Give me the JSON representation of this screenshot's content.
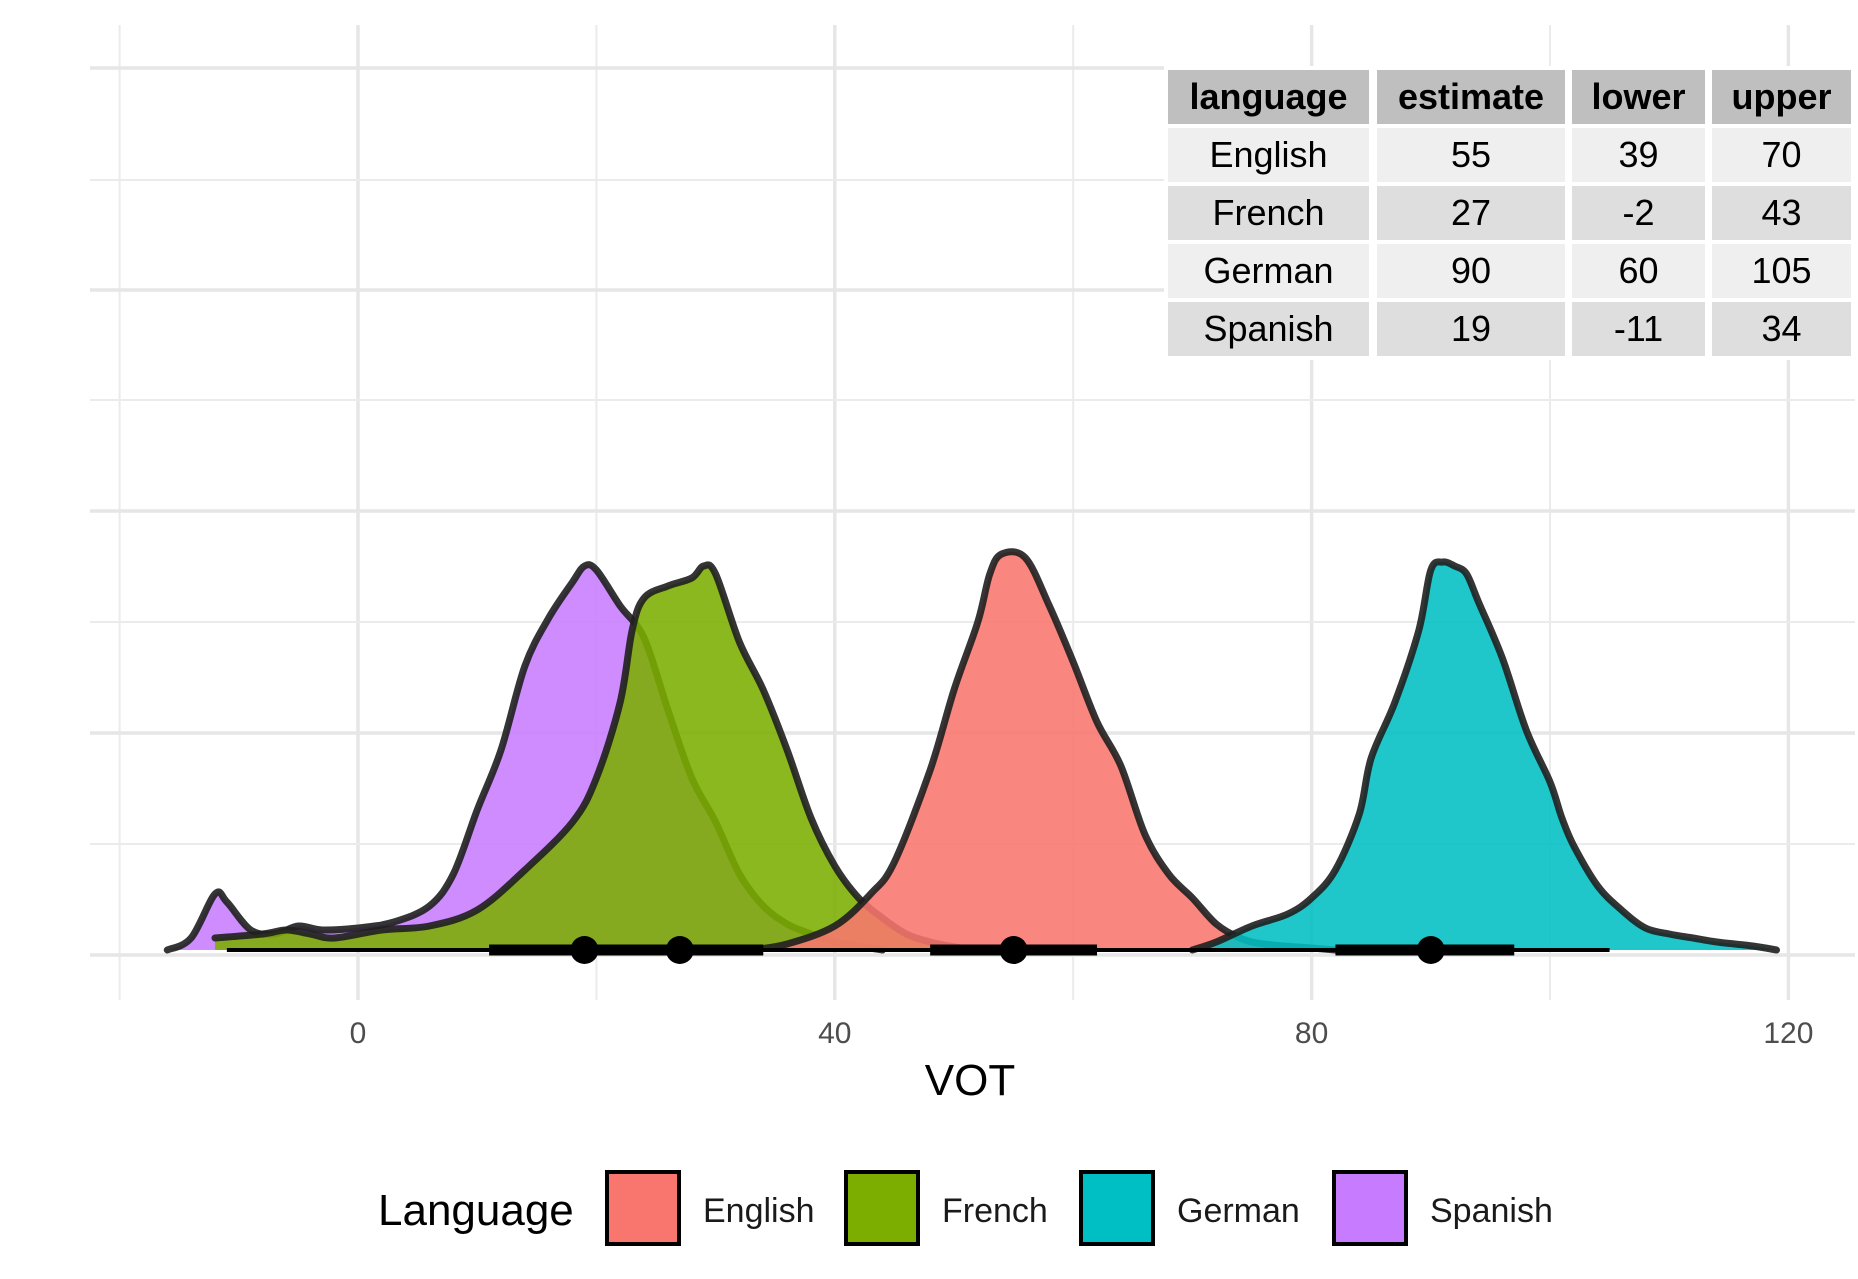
{
  "chart_data": {
    "type": "density",
    "xlabel": "VOT",
    "ylabel": "",
    "xlim": [
      -25,
      125
    ],
    "x_ticks": [
      0,
      40,
      80,
      120
    ],
    "x_tick_labels": [
      "0",
      "40",
      "80",
      "120"
    ],
    "grid": true,
    "legend": {
      "title": "Language",
      "position": "bottom",
      "entries": [
        "English",
        "French",
        "German",
        "Spanish"
      ]
    },
    "colors": {
      "English": "#F8766D",
      "French": "#7CAE00",
      "German": "#00BFC4",
      "Spanish": "#C77CFF"
    },
    "series": [
      {
        "name": "English",
        "estimate": 55,
        "ci_inner": [
          48,
          62
        ],
        "ci_outer": [
          39,
          70
        ],
        "density": [
          [
            33,
            0
          ],
          [
            36,
            0.015
          ],
          [
            40,
            0.06
          ],
          [
            43,
            0.14
          ],
          [
            45,
            0.22
          ],
          [
            48,
            0.45
          ],
          [
            50,
            0.65
          ],
          [
            52,
            0.82
          ],
          [
            53,
            0.94
          ],
          [
            54,
            0.99
          ],
          [
            56,
            0.98
          ],
          [
            58,
            0.86
          ],
          [
            60,
            0.72
          ],
          [
            62,
            0.57
          ],
          [
            64,
            0.46
          ],
          [
            66,
            0.29
          ],
          [
            68,
            0.19
          ],
          [
            70,
            0.13
          ],
          [
            72,
            0.065
          ],
          [
            74,
            0.03
          ],
          [
            76,
            0.015
          ],
          [
            80,
            0.005
          ],
          [
            82,
            0
          ]
        ]
      },
      {
        "name": "French",
        "estimate": 27,
        "ci_inner": [
          22,
          34
        ],
        "ci_outer": [
          -2,
          43
        ],
        "density": [
          [
            -12,
            0.03
          ],
          [
            -8,
            0.04
          ],
          [
            -6,
            0.05
          ],
          [
            -4,
            0.04
          ],
          [
            -2,
            0.03
          ],
          [
            2,
            0.05
          ],
          [
            6,
            0.06
          ],
          [
            10,
            0.1
          ],
          [
            14,
            0.2
          ],
          [
            18,
            0.32
          ],
          [
            20,
            0.43
          ],
          [
            22,
            0.62
          ],
          [
            23,
            0.8
          ],
          [
            24,
            0.88
          ],
          [
            26,
            0.91
          ],
          [
            28,
            0.93
          ],
          [
            29,
            0.96
          ],
          [
            30,
            0.94
          ],
          [
            32,
            0.77
          ],
          [
            34,
            0.65
          ],
          [
            36,
            0.5
          ],
          [
            38,
            0.33
          ],
          [
            40,
            0.21
          ],
          [
            42,
            0.13
          ],
          [
            44,
            0.08
          ],
          [
            46,
            0.04
          ],
          [
            48,
            0.02
          ],
          [
            50,
            0.008
          ],
          [
            52,
            0
          ]
        ]
      },
      {
        "name": "German",
        "estimate": 90,
        "ci_inner": [
          82,
          97
        ],
        "ci_outer": [
          60,
          105
        ],
        "density": [
          [
            70,
            0
          ],
          [
            72,
            0.02
          ],
          [
            75,
            0.06
          ],
          [
            78,
            0.09
          ],
          [
            80,
            0.13
          ],
          [
            82,
            0.2
          ],
          [
            84,
            0.34
          ],
          [
            85,
            0.48
          ],
          [
            87,
            0.62
          ],
          [
            89,
            0.8
          ],
          [
            90,
            0.95
          ],
          [
            91,
            0.97
          ],
          [
            92,
            0.96
          ],
          [
            93,
            0.94
          ],
          [
            94,
            0.87
          ],
          [
            96,
            0.73
          ],
          [
            98,
            0.55
          ],
          [
            100,
            0.42
          ],
          [
            101,
            0.33
          ],
          [
            102,
            0.26
          ],
          [
            104,
            0.16
          ],
          [
            106,
            0.1
          ],
          [
            108,
            0.055
          ],
          [
            110,
            0.04
          ],
          [
            112,
            0.03
          ],
          [
            114,
            0.02
          ],
          [
            117,
            0.01
          ],
          [
            119,
            0
          ]
        ]
      },
      {
        "name": "Spanish",
        "estimate": 19,
        "ci_inner": [
          11,
          27
        ],
        "ci_outer": [
          -11,
          34
        ],
        "density": [
          [
            -16,
            0
          ],
          [
            -14,
            0.03
          ],
          [
            -12,
            0.14
          ],
          [
            -11,
            0.12
          ],
          [
            -9,
            0.05
          ],
          [
            -7,
            0.04
          ],
          [
            -5,
            0.06
          ],
          [
            -3,
            0.05
          ],
          [
            0,
            0.055
          ],
          [
            3,
            0.07
          ],
          [
            6,
            0.11
          ],
          [
            8,
            0.19
          ],
          [
            10,
            0.35
          ],
          [
            12,
            0.5
          ],
          [
            14,
            0.71
          ],
          [
            16,
            0.83
          ],
          [
            18,
            0.92
          ],
          [
            19,
            0.96
          ],
          [
            20,
            0.95
          ],
          [
            22,
            0.86
          ],
          [
            24,
            0.78
          ],
          [
            26,
            0.6
          ],
          [
            28,
            0.43
          ],
          [
            30,
            0.32
          ],
          [
            32,
            0.19
          ],
          [
            34,
            0.11
          ],
          [
            36,
            0.065
          ],
          [
            38,
            0.04
          ],
          [
            40,
            0.02
          ],
          [
            44,
            0
          ]
        ]
      }
    ],
    "table": {
      "columns": [
        "language",
        "estimate",
        "lower",
        "upper"
      ],
      "rows": [
        [
          "English",
          "55",
          "39",
          "70"
        ],
        [
          "French",
          "27",
          "-2",
          "43"
        ],
        [
          "German",
          "90",
          "60",
          "105"
        ],
        [
          "Spanish",
          "19",
          "-11",
          "34"
        ]
      ]
    }
  }
}
